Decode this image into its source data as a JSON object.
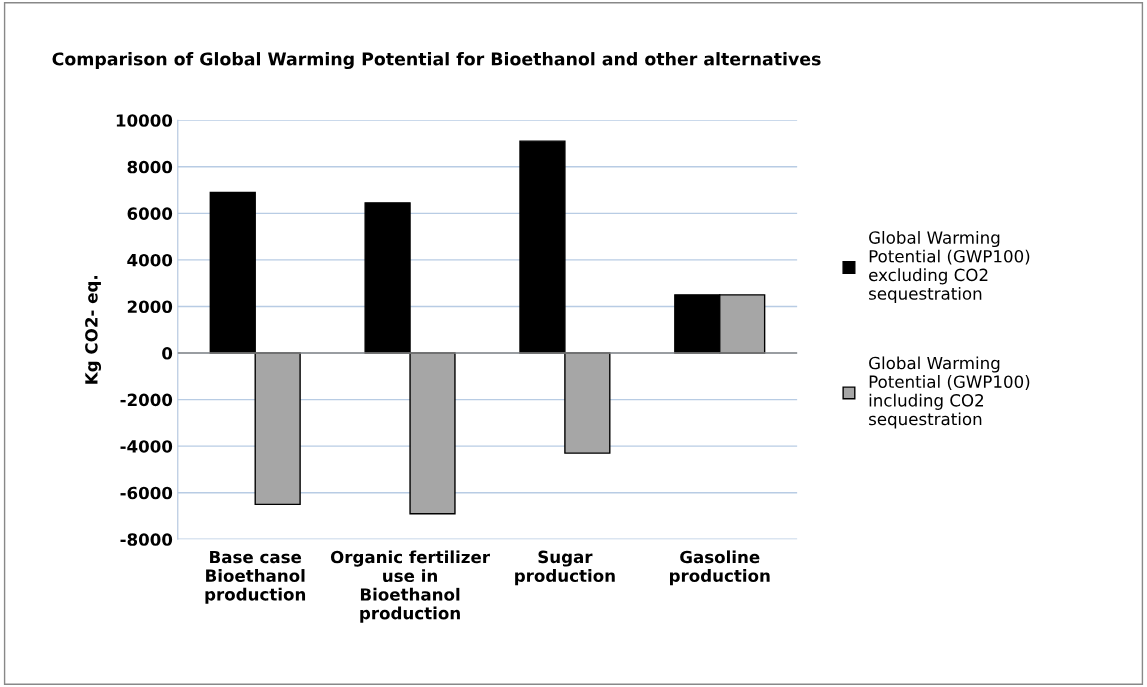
{
  "chart_data": {
    "type": "bar",
    "title": "Comparison of Global Warming Potential for Bioethanol and other alternatives",
    "ylabel": "Kg CO2- eq.",
    "categories": [
      "Base case\nBioethanol\nproduction",
      "Organic fertilizer\nuse in\nBioethanol\nproduction",
      "Sugar\nproduction",
      "Gasoline\nproduction"
    ],
    "series": [
      {
        "name": "Global Warming\nPotential (GWP100)\nexcluding CO2\nsequestration",
        "color": "#000000",
        "values": [
          6900,
          6450,
          9100,
          2500
        ]
      },
      {
        "name": "Global Warming\nPotential (GWP100)\nincluding CO2\nsequestration",
        "color": "#a6a6a6",
        "values": [
          -6500,
          -6900,
          -4300,
          2500
        ]
      }
    ],
    "ylim": [
      -8000,
      10000
    ],
    "yticks": [
      -8000,
      -6000,
      -4000,
      -2000,
      0,
      2000,
      4000,
      6000,
      8000,
      10000
    ],
    "grid": "y",
    "legend": "right"
  }
}
